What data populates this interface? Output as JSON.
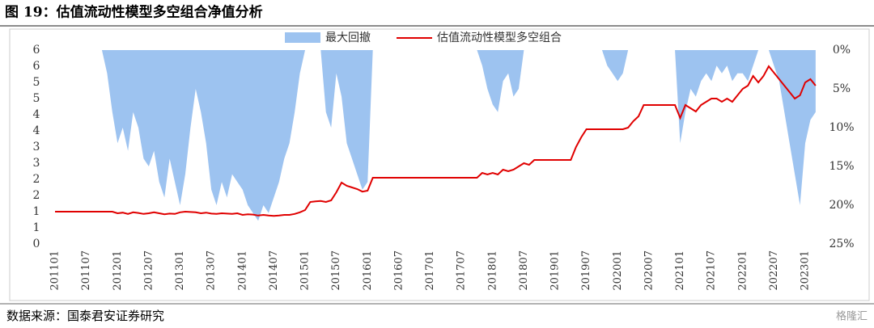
{
  "header": {
    "title": "图 19：估值流动性模型多空组合净值分析"
  },
  "source": "数据来源：国泰君安证券研究",
  "watermark": "格隆汇",
  "chart_data": {
    "type": "line-area",
    "categories": [
      "201101",
      null,
      null,
      null,
      null,
      null,
      "201107",
      null,
      null,
      null,
      null,
      null,
      "201201",
      null,
      null,
      null,
      null,
      null,
      "201207",
      null,
      null,
      null,
      null,
      null,
      "201301",
      null,
      null,
      null,
      null,
      null,
      "201307",
      null,
      null,
      null,
      null,
      null,
      "201401",
      null,
      null,
      null,
      null,
      null,
      "201407",
      null,
      null,
      null,
      null,
      null,
      "201501",
      null,
      null,
      null,
      null,
      null,
      "201507",
      null,
      null,
      null,
      null,
      null,
      "201601",
      null,
      null,
      null,
      null,
      null,
      "201607",
      null,
      null,
      null,
      null,
      null,
      "201701",
      null,
      null,
      null,
      null,
      null,
      "201707",
      null,
      null,
      null,
      null,
      null,
      "201801",
      null,
      null,
      null,
      null,
      null,
      "201807",
      null,
      null,
      null,
      null,
      null,
      "201901",
      null,
      null,
      null,
      null,
      null,
      "201907",
      null,
      null,
      null,
      null,
      null,
      "202001",
      null,
      null,
      null,
      null,
      null,
      "202007",
      null,
      null,
      null,
      null,
      null,
      "202101",
      null,
      null,
      null,
      null,
      null,
      "202107",
      null,
      null,
      null,
      null,
      null,
      "202201",
      null,
      null,
      null,
      null,
      null,
      "202207",
      null,
      null,
      null,
      null,
      null,
      "202301",
      null,
      null
    ],
    "series": [
      {
        "name": "最大回撤",
        "color": "#9dc3f0",
        "axis": "y2",
        "kind": "area",
        "values": [
          0,
          0,
          0,
          0,
          0,
          0,
          0,
          0,
          0,
          0,
          3,
          8,
          12,
          10,
          13,
          8,
          10,
          14,
          15,
          13,
          17,
          19,
          14,
          17,
          20,
          16,
          10,
          5,
          8,
          12,
          18,
          20,
          17,
          19,
          16,
          17,
          18,
          20,
          21,
          22,
          20,
          21,
          19,
          17,
          14,
          12,
          8,
          3,
          0,
          0,
          0,
          0,
          8,
          10,
          3,
          6,
          12,
          14,
          16,
          18,
          17,
          0,
          0,
          0,
          0,
          0,
          0,
          0,
          0,
          0,
          0,
          0,
          0,
          0,
          0,
          0,
          0,
          0,
          0,
          0,
          0,
          0,
          2,
          5,
          7,
          8,
          4,
          3,
          6,
          5,
          0,
          0,
          0,
          0,
          0,
          0,
          0,
          0,
          0,
          0,
          0,
          0,
          0,
          0,
          0,
          0,
          2,
          3,
          4,
          3,
          0,
          0,
          0,
          0,
          0,
          0,
          0,
          0,
          0,
          0,
          12,
          8,
          5,
          6,
          4,
          3,
          4,
          2,
          3,
          2,
          4,
          3,
          3,
          4,
          2,
          0,
          0,
          0,
          2,
          4,
          8,
          12,
          16,
          20,
          12,
          9,
          8
        ]
      },
      {
        "name": "估值流动性模型多空组合",
        "color": "#e00000",
        "kind": "line",
        "values": [
          1,
          1,
          1,
          1,
          1,
          1,
          1,
          1,
          1,
          1,
          1,
          1,
          0.95,
          0.97,
          0.93,
          0.98,
          0.96,
          0.93,
          0.95,
          0.98,
          0.95,
          0.92,
          0.94,
          0.93,
          0.98,
          1,
          0.99,
          0.98,
          0.95,
          0.97,
          0.94,
          0.93,
          0.95,
          0.94,
          0.93,
          0.95,
          0.9,
          0.92,
          0.91,
          0.88,
          0.9,
          0.88,
          0.87,
          0.88,
          0.9,
          0.9,
          0.93,
          0.98,
          1.05,
          1.3,
          1.32,
          1.33,
          1.3,
          1.35,
          1.6,
          1.9,
          1.8,
          1.75,
          1.7,
          1.62,
          1.65,
          2.05,
          2.05,
          2.05,
          2.05,
          2.05,
          2.05,
          2.05,
          2.05,
          2.05,
          2.05,
          2.05,
          2.05,
          2.05,
          2.05,
          2.05,
          2.05,
          2.05,
          2.05,
          2.05,
          2.05,
          2.05,
          2.2,
          2.15,
          2.2,
          2.15,
          2.3,
          2.25,
          2.3,
          2.4,
          2.5,
          2.45,
          2.6,
          2.6,
          2.6,
          2.6,
          2.6,
          2.6,
          2.6,
          2.6,
          3,
          3.3,
          3.55,
          3.55,
          3.55,
          3.55,
          3.55,
          3.55,
          3.55,
          3.55,
          3.6,
          3.8,
          3.95,
          4.3,
          4.3,
          4.3,
          4.3,
          4.3,
          4.3,
          4.3,
          3.9,
          4.3,
          4.2,
          4.1,
          4.3,
          4.4,
          4.5,
          4.5,
          4.4,
          4.5,
          4.4,
          4.6,
          4.8,
          4.9,
          5.2,
          5,
          5.2,
          5.5,
          5.3,
          5.1,
          4.9,
          4.7,
          4.5,
          4.6,
          5,
          5.1,
          4.9
        ]
      }
    ],
    "ylim": [
      0,
      6
    ],
    "yticks": [
      0,
      {
        "value": 0.5,
        "label": "1"
      },
      1,
      {
        "value": 1.5,
        "label": "2"
      },
      2,
      {
        "value": 2.5,
        "label": "3"
      },
      3,
      {
        "value": 3.5,
        "label": "4"
      },
      4,
      {
        "value": 4.5,
        "label": "5"
      },
      5,
      {
        "value": 5.5,
        "label": "6"
      },
      6
    ],
    "y2lim": [
      25,
      0
    ],
    "y2ticks": [
      {
        "value": 0,
        "label": "0%"
      },
      {
        "value": 5,
        "label": "5%"
      },
      {
        "value": 10,
        "label": "10%"
      },
      {
        "value": 15,
        "label": "15%"
      },
      {
        "value": 20,
        "label": "20%"
      },
      {
        "value": 25,
        "label": "25%"
      }
    ],
    "grid": false
  }
}
